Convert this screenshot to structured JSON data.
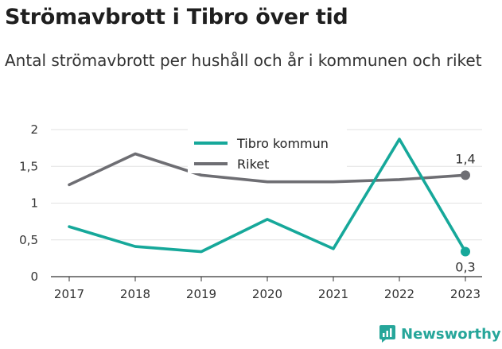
{
  "title": "Strömavbrott i Tibro över tid",
  "subtitle": "Antal strömavbrott per hushåll och år i kommunen och riket",
  "brand": {
    "name": "Newsworthy",
    "icon": "newsworthy-logo-icon",
    "color": "#26a69a"
  },
  "chart_data": {
    "type": "line",
    "title": "Strömavbrott i Tibro över tid",
    "subtitle": "Antal strömavbrott per hushåll och år i kommunen och riket",
    "xlabel": "",
    "ylabel": "",
    "categories": [
      "2017",
      "2018",
      "2019",
      "2020",
      "2021",
      "2022",
      "2023"
    ],
    "ylim": [
      0,
      2
    ],
    "yticks": [
      0,
      0.5,
      1,
      1.5,
      2
    ],
    "ytick_labels": [
      "0",
      "0,5",
      "1",
      "1,5",
      "2"
    ],
    "grid": "horizontal",
    "legend_position": "top-center",
    "series": [
      {
        "name": "Tibro kommun",
        "color": "#16a89a",
        "values": [
          0.68,
          0.41,
          0.34,
          0.78,
          0.38,
          1.87,
          0.34
        ],
        "end_label": "0,3"
      },
      {
        "name": "Riket",
        "color": "#6e6e73",
        "values": [
          1.25,
          1.67,
          1.38,
          1.29,
          1.29,
          1.32,
          1.38
        ],
        "end_label": "1,4"
      }
    ]
  }
}
